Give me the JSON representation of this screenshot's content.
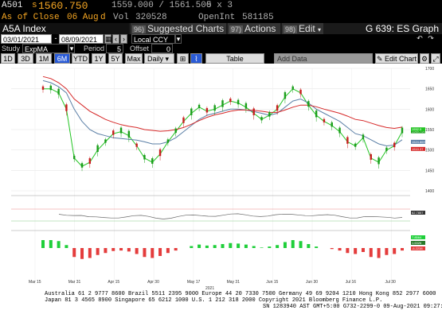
{
  "quote": {
    "ticker": "A501",
    "price_prefix": "s",
    "price": "1560.750",
    "bid_ask": "1559.000 / 1561.500",
    "size": "5 x 3",
    "as_of_label": "As of Close",
    "as_of_date": "06 Aug",
    "date_marker": "d",
    "vol_label": "Vol",
    "volume": "320528",
    "openint_label": "OpenInt",
    "openint": "581185"
  },
  "titlebar": {
    "security": "A5A Index",
    "suggested_num": "96)",
    "suggested_label": "Suggested Charts",
    "actions_num": "97)",
    "actions_label": "Actions",
    "edit_num": "98)",
    "edit_label": "Edit",
    "graph_title": "G 639: ES Graph"
  },
  "range": {
    "start": "03/01/2021",
    "end": "08/09/2021",
    "currency": "Local CCY"
  },
  "study": {
    "label": "Study",
    "value": "ExpMA",
    "period_label": "Period",
    "period": "5",
    "offset_label": "Offset",
    "offset": "0"
  },
  "toolbar": {
    "periods": [
      "1D",
      "3D",
      "1M",
      "6M",
      "YTD",
      "1Y",
      "5Y",
      "Max"
    ],
    "selected": "6M",
    "frequency": "Daily",
    "table_label": "Table",
    "add_data_placeholder": "Add Data",
    "edit_chart_label": "Edit Chart"
  },
  "colors": {
    "accent_amber": "#f5a623",
    "selected_blue": "#2a5bd7",
    "ema_fast": "#22c422",
    "ema_mid": "#5b7fa6",
    "ema_slow": "#d62828"
  },
  "chart_data": {
    "type": "line",
    "x_labels": [
      "Mar 15",
      "Mar 31",
      "Apr 15",
      "Apr 30",
      "May 17",
      "May 31",
      "Jun 15",
      "Jun 30",
      "Jul 16",
      "Jul 30"
    ],
    "year_label": "2021",
    "y_ticks": [
      1700,
      1650,
      1600,
      1550,
      1500,
      1450,
      1400
    ],
    "ylim": [
      1400,
      1700
    ],
    "series": [
      {
        "values": [
          1650,
          1650,
          1640,
          1600,
          1480,
          1460,
          1470,
          1500,
          1520,
          1540,
          1545,
          1535,
          1510,
          1480,
          1470,
          1490,
          1520,
          1545,
          1570,
          1590,
          1605,
          1595,
          1600,
          1610,
          1620,
          1615,
          1605,
          1590,
          1575,
          1585,
          1600,
          1630,
          1650,
          1640,
          1610,
          1585,
          1570,
          1560,
          1545,
          1520,
          1510,
          1530,
          1480,
          1470,
          1500,
          1510,
          1545
        ]
      },
      {
        "values": [
          1670,
          1665,
          1655,
          1640,
          1600,
          1570,
          1550,
          1540,
          1535,
          1530,
          1528,
          1526,
          1524,
          1520,
          1515,
          1515,
          1520,
          1530,
          1545,
          1560,
          1575,
          1585,
          1590,
          1595,
          1600,
          1600,
          1598,
          1594,
          1590,
          1585,
          1590,
          1605,
          1620,
          1625,
          1615,
          1600,
          1590,
          1580,
          1570,
          1555,
          1540,
          1535,
          1525,
          1515,
          1510,
          1512,
          1525
        ]
      },
      {
        "values": [
          1680,
          1675,
          1665,
          1650,
          1625,
          1610,
          1595,
          1585,
          1575,
          1568,
          1562,
          1558,
          1555,
          1550,
          1548,
          1546,
          1547,
          1550,
          1555,
          1563,
          1572,
          1580,
          1586,
          1590,
          1595,
          1598,
          1598,
          1597,
          1595,
          1592,
          1592,
          1598,
          1605,
          1610,
          1610,
          1606,
          1600,
          1595,
          1590,
          1583,
          1575,
          1572,
          1566,
          1560,
          1555,
          1553,
          1556
        ]
      }
    ],
    "right_labels": [
      "1560.750",
      "1552.5",
      "1524.869",
      "1510.37"
    ]
  },
  "lower_panels": {
    "rsi_label": "62.7857",
    "macd_labels": [
      "7.8564",
      "1.6326",
      "-6.2238"
    ]
  },
  "footer": {
    "line1": "Australia 61 2 9777 8600 Brazil 5511 2395 9000 Europe 44 20 7330 7500 Germany 49 69 9204 1210 Hong Kong 852 2977 6000",
    "line2": "Japan 81 3 4565 8900 Singapore 65 6212 1000 U.S. 1 212 318 2000 Copyright 2021 Bloomberg Finance L.P.",
    "line3": "SN 1283940 AST GMT+5:00 G732-2299-0 09-Aug-2021 09:27:11"
  }
}
